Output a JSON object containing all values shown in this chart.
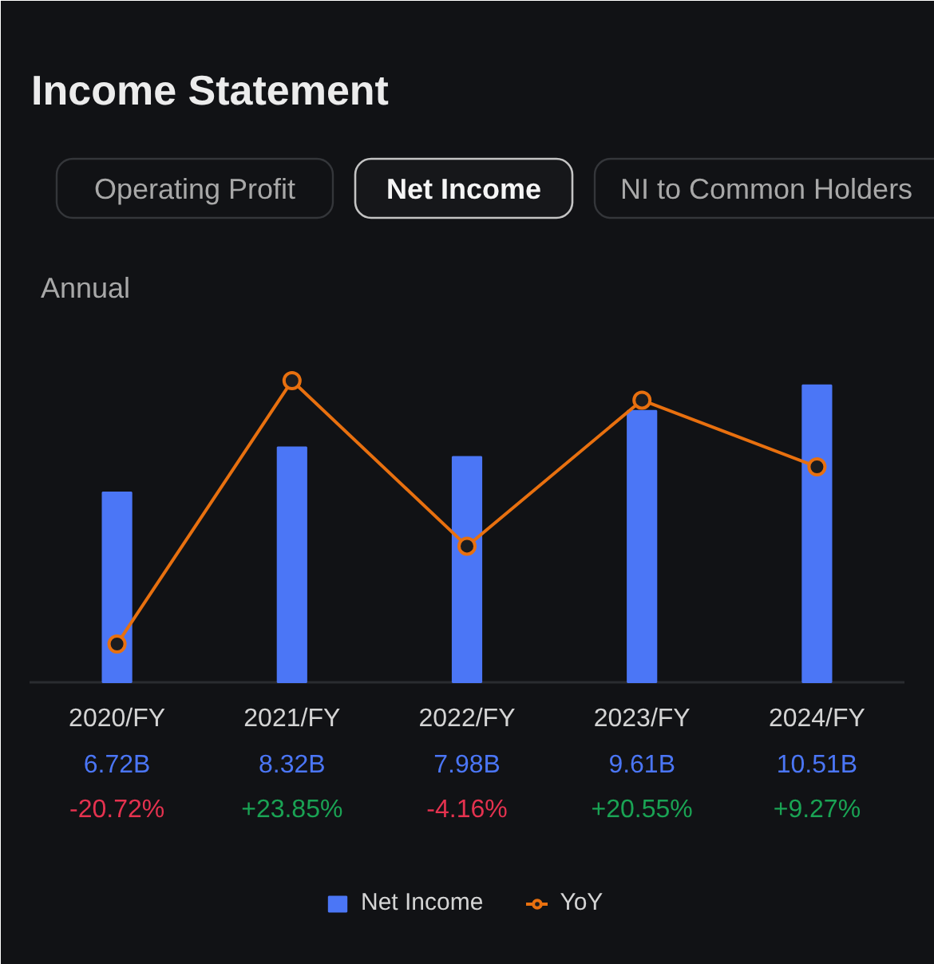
{
  "chart_data": {
    "type": "bar",
    "title": "Income Statement",
    "categories": [
      "2020/FY",
      "2021/FY",
      "2022/FY",
      "2023/FY",
      "2024/FY"
    ],
    "series": [
      {
        "name": "Net Income",
        "color": "#4b76f6",
        "values": [
          6.72,
          8.32,
          7.98,
          9.61,
          10.51
        ],
        "value_labels": [
          "6.72B",
          "8.32B",
          "7.98B",
          "9.61B",
          "10.51B"
        ]
      },
      {
        "name": "YoY",
        "type": "line",
        "axis": "y2",
        "color": "#e8700f",
        "values": [
          -20.72,
          23.85,
          -4.16,
          20.55,
          9.27
        ],
        "value_labels": [
          "-20.72%",
          "+23.85%",
          "-4.16%",
          "+20.55%",
          "+9.27%"
        ]
      }
    ],
    "annotations": [
      "Operating Profit",
      "Net Income",
      "NI to Common Holders",
      "Annual"
    ],
    "legend": "bottom",
    "grid": false,
    "marker": "circle",
    "line_style": "solid",
    "tick_labels": "x"
  }
}
